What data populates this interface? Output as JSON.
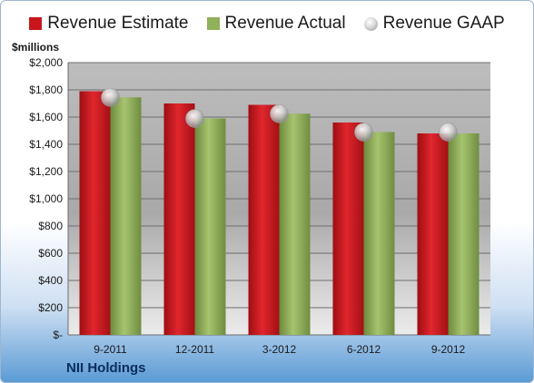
{
  "legend": {
    "estimate": "Revenue Estimate",
    "actual": "Revenue Actual",
    "gaap": "Revenue GAAP"
  },
  "unit_label": "$millions",
  "company": "NII Holdings",
  "colors": {
    "estimate": "#c8161d",
    "actual": "#8fb15a",
    "gaap": "#c7c7c7"
  },
  "chart_data": {
    "type": "bar",
    "categories": [
      "9-2011",
      "12-2011",
      "3-2012",
      "6-2012",
      "9-2012"
    ],
    "series": [
      {
        "name": "Revenue Estimate",
        "values": [
          1790,
          1700,
          1690,
          1560,
          1480
        ]
      },
      {
        "name": "Revenue Actual",
        "values": [
          1745,
          1590,
          1625,
          1490,
          1480
        ]
      },
      {
        "name": "Revenue GAAP",
        "type": "scatter",
        "values": [
          1745,
          1590,
          1625,
          1490,
          1490
        ]
      }
    ],
    "ylabel": "$millions",
    "ylim": [
      0,
      2000
    ],
    "yticks": [
      0,
      200,
      400,
      600,
      800,
      1000,
      1200,
      1400,
      1600,
      1800,
      2000
    ],
    "ytick_labels": [
      "$-",
      "$200",
      "$400",
      "$600",
      "$800",
      "$1,000",
      "$1,200",
      "$1,400",
      "$1,600",
      "$1,800",
      "$2,000"
    ],
    "grid": true,
    "legend_position": "top"
  }
}
